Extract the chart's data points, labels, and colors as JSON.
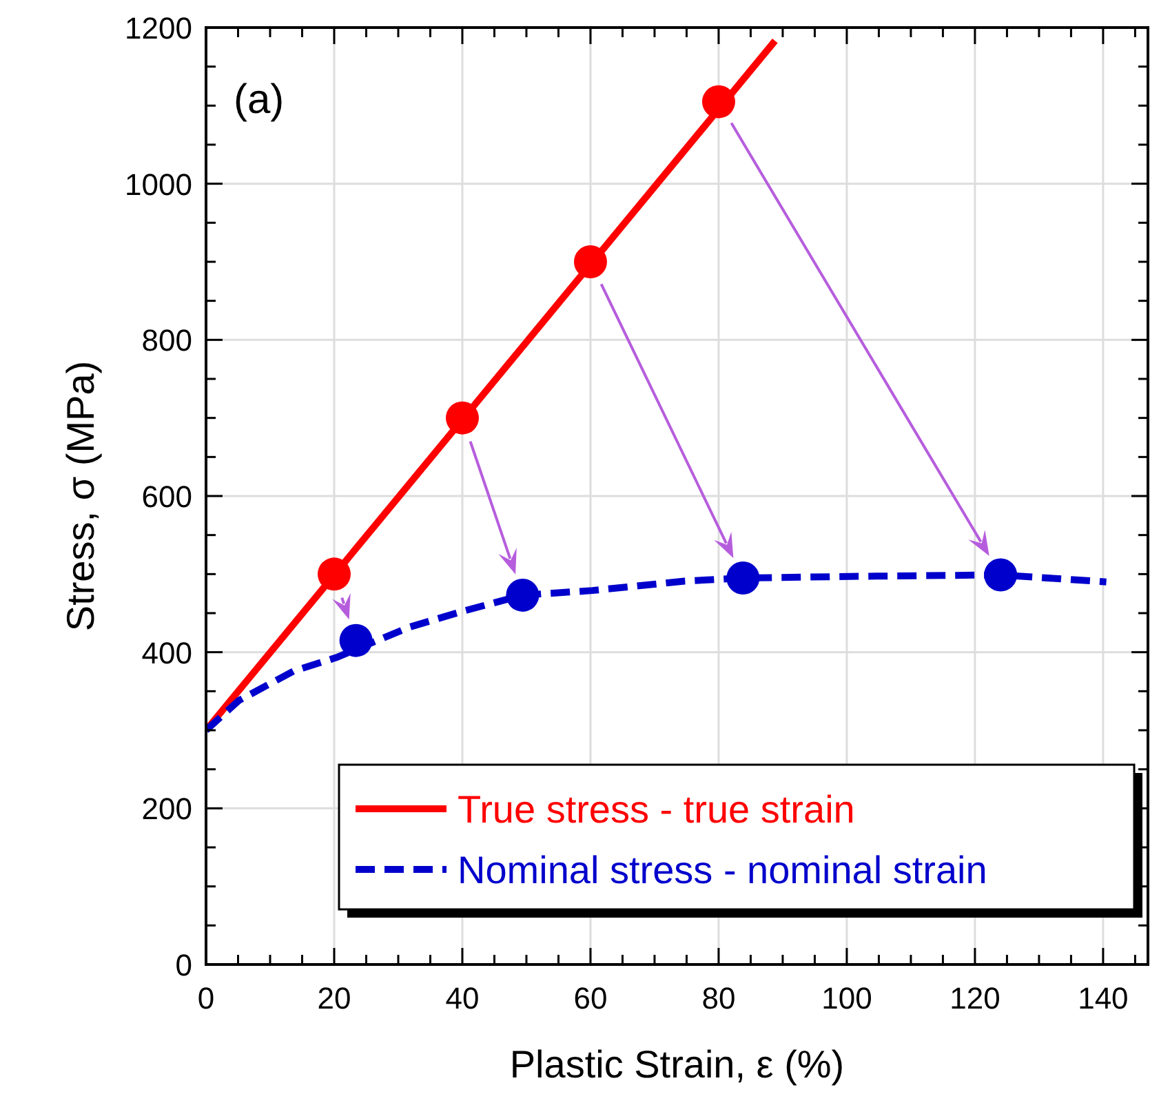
{
  "chart_data": {
    "type": "line",
    "xlabel": "Plastic Strain, ε (%)",
    "ylabel": "Stress, σ (MPa)",
    "annotations": [
      "(a)"
    ],
    "xlim": [
      0,
      147
    ],
    "ylim": [
      0,
      1200
    ],
    "xticks": [
      0,
      {
        "value": 5,
        "label": null
      },
      {
        "value": 10,
        "label": null
      },
      {
        "value": 15,
        "label": null
      },
      20,
      {
        "value": 25,
        "label": null
      },
      {
        "value": 30,
        "label": null
      },
      {
        "value": 35,
        "label": null
      },
      40,
      {
        "value": 45,
        "label": null
      },
      {
        "value": 50,
        "label": null
      },
      {
        "value": 55,
        "label": null
      },
      60,
      {
        "value": 65,
        "label": null
      },
      {
        "value": 70,
        "label": null
      },
      {
        "value": 75,
        "label": null
      },
      80,
      {
        "value": 85,
        "label": null
      },
      {
        "value": 90,
        "label": null
      },
      {
        "value": 95,
        "label": null
      },
      100,
      {
        "value": 105,
        "label": null
      },
      {
        "value": 110,
        "label": null
      },
      {
        "value": 115,
        "label": null
      },
      120,
      {
        "value": 125,
        "label": null
      },
      {
        "value": 130,
        "label": null
      },
      {
        "value": 135,
        "label": null
      },
      140,
      {
        "value": 145,
        "label": null
      }
    ],
    "yticks": [
      0,
      {
        "value": 50,
        "label": null
      },
      {
        "value": 100,
        "label": null
      },
      {
        "value": 150,
        "label": null
      },
      200,
      {
        "value": 250,
        "label": null
      },
      {
        "value": 300,
        "label": null
      },
      {
        "value": 350,
        "label": null
      },
      400,
      {
        "value": 450,
        "label": null
      },
      {
        "value": 500,
        "label": null
      },
      {
        "value": 550,
        "label": null
      },
      600,
      {
        "value": 650,
        "label": null
      },
      {
        "value": 700,
        "label": null
      },
      {
        "value": 750,
        "label": null
      },
      800,
      {
        "value": 850,
        "label": null
      },
      {
        "value": 900,
        "label": null
      },
      {
        "value": 950,
        "label": null
      },
      1000,
      {
        "value": 1050,
        "label": null
      },
      {
        "value": 1100,
        "label": null
      },
      {
        "value": 1150,
        "label": null
      },
      1200
    ],
    "grid": true,
    "legend": "bottom right",
    "series": [
      {
        "name": "True stress - true strain",
        "color": "#ff0000",
        "line_style": "solid",
        "marker": "none",
        "x": [
          0,
          88.8
        ],
        "values": [
          300,
          1183
        ]
      },
      {
        "name": "Nominal stress - nominal strain",
        "color": "#0000cc",
        "line_style": "dashed",
        "marker": "none",
        "x": [
          0,
          5.1,
          13.7,
          20.3,
          31.7,
          40.3,
          49.4,
          60.3,
          74.7,
          83.8,
          100.5,
          124,
          140.5
        ],
        "values": [
          300,
          338,
          376,
          393,
          432,
          453,
          473,
          479,
          491,
          495,
          497,
          499,
          490
        ]
      },
      {
        "type": "scatter",
        "color": "#ff0000",
        "marker": "circle",
        "x": [
          20,
          40,
          60,
          80
        ],
        "values": [
          500,
          700,
          900,
          1105
        ]
      },
      {
        "type": "scatter",
        "color": "#0000cc",
        "marker": "circle",
        "x": [
          23.4,
          49.4,
          83.8,
          124
        ],
        "values": [
          415,
          473,
          495,
          499
        ]
      }
    ]
  }
}
